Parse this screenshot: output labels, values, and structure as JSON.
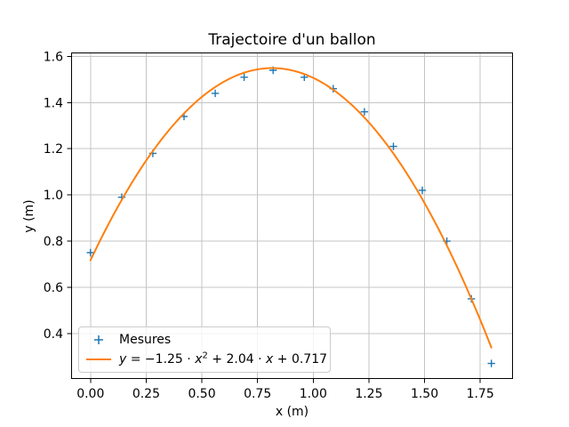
{
  "chart_data": {
    "type": "scatter",
    "title": "Trajectoire d'un ballon",
    "xlabel": "x (m)",
    "ylabel": "y (m)",
    "grid": true,
    "background": "#ffffff",
    "grid_color": "#c4c4c4",
    "spine_color": "#000000",
    "xlim": [
      -0.085,
      1.895
    ],
    "ylim": [
      0.205,
      1.615
    ],
    "x_ticks": [
      0.0,
      0.25,
      0.5,
      0.75,
      1.0,
      1.25,
      1.5,
      1.75
    ],
    "x_tick_labels": [
      "0.00",
      "0.25",
      "0.50",
      "0.75",
      "1.00",
      "1.25",
      "1.50",
      "1.75"
    ],
    "y_ticks": [
      0.4,
      0.6,
      0.8,
      1.0,
      1.2,
      1.4,
      1.6
    ],
    "y_tick_labels": [
      "0.4",
      "0.6",
      "0.8",
      "1.0",
      "1.2",
      "1.4",
      "1.6"
    ],
    "series": [
      {
        "name": "Mesures",
        "type": "scatter",
        "marker": "+",
        "color": "#1f77b4",
        "points": [
          [
            0.0,
            0.75
          ],
          [
            0.14,
            0.99
          ],
          [
            0.28,
            1.18
          ],
          [
            0.42,
            1.34
          ],
          [
            0.56,
            1.44
          ],
          [
            0.69,
            1.51
          ],
          [
            0.82,
            1.54
          ],
          [
            0.96,
            1.51
          ],
          [
            1.09,
            1.46
          ],
          [
            1.23,
            1.36
          ],
          [
            1.36,
            1.21
          ],
          [
            1.49,
            1.02
          ],
          [
            1.6,
            0.8
          ],
          [
            1.71,
            0.55
          ],
          [
            1.8,
            0.27
          ]
        ]
      },
      {
        "name": "y = −1.25 ⋅ x² + 2.04 ⋅ x + 0.717",
        "type": "line",
        "color": "#ff7f0e",
        "equation": {
          "a": -1.25,
          "b": 2.04,
          "c": 0.717
        },
        "x_range": [
          0.0,
          1.8
        ]
      }
    ],
    "legend": {
      "position": "lower left",
      "entries": [
        "Mesures",
        "y = −1.25 ⋅ x² + 2.04 ⋅ x + 0.717"
      ],
      "equation_parts": {
        "p1": "y",
        "p2": " = −1.25 ⋅ ",
        "p3": "x",
        "p4": "2",
        "p5": " + 2.04 ⋅ ",
        "p6": "x",
        "p7": " + 0.717"
      }
    }
  }
}
